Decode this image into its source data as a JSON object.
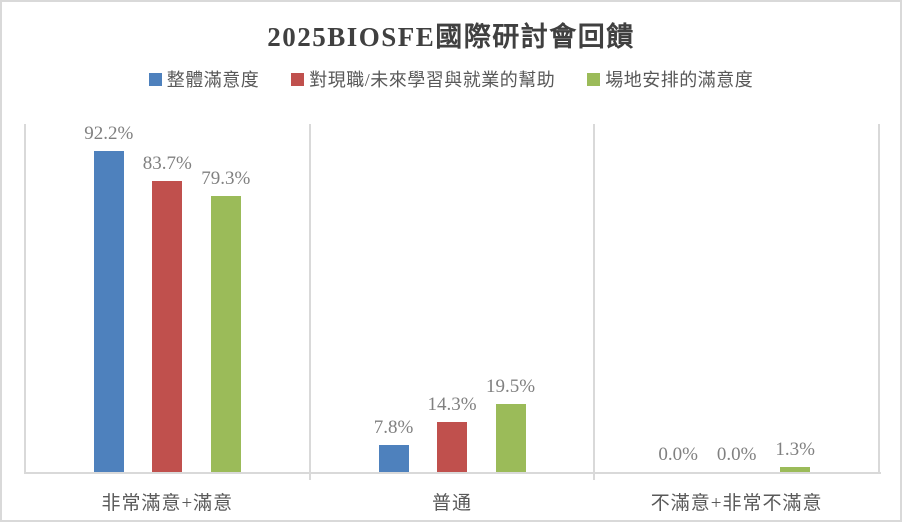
{
  "chart_data": {
    "type": "bar",
    "title": "2025BIOSFE國際研討會回饋",
    "categories": [
      "非常滿意+滿意",
      "普通",
      "不滿意+非常不滿意"
    ],
    "series": [
      {
        "name": "整體滿意度",
        "color": "#4E81BD",
        "values": [
          92.2,
          7.8,
          0.0
        ],
        "labels": [
          "92.2%",
          "7.8%",
          "0.0%"
        ]
      },
      {
        "name": "對現職/未來學習與就業的幫助",
        "color": "#C0504D",
        "values": [
          83.7,
          14.3,
          0.0
        ],
        "labels": [
          "83.7%",
          "14.3%",
          "0.0%"
        ]
      },
      {
        "name": "場地安排的滿意度",
        "color": "#9BBB59",
        "values": [
          79.3,
          19.5,
          1.3
        ],
        "labels": [
          "79.3%",
          "19.5%",
          "1.3%"
        ]
      }
    ],
    "ylim": [
      0,
      100
    ],
    "value_suffix": "%",
    "legend_position": "top",
    "y_axis_visible": false,
    "gridlines": "vertical-category-separators",
    "colors": {
      "axis_line": "#D9D9D9",
      "frame_border": "#D9D9D9",
      "title_text": "#404040",
      "data_label_text": "#808080",
      "category_text": "#595959",
      "legend_text": "#595959",
      "background": "#FFFFFF"
    }
  }
}
